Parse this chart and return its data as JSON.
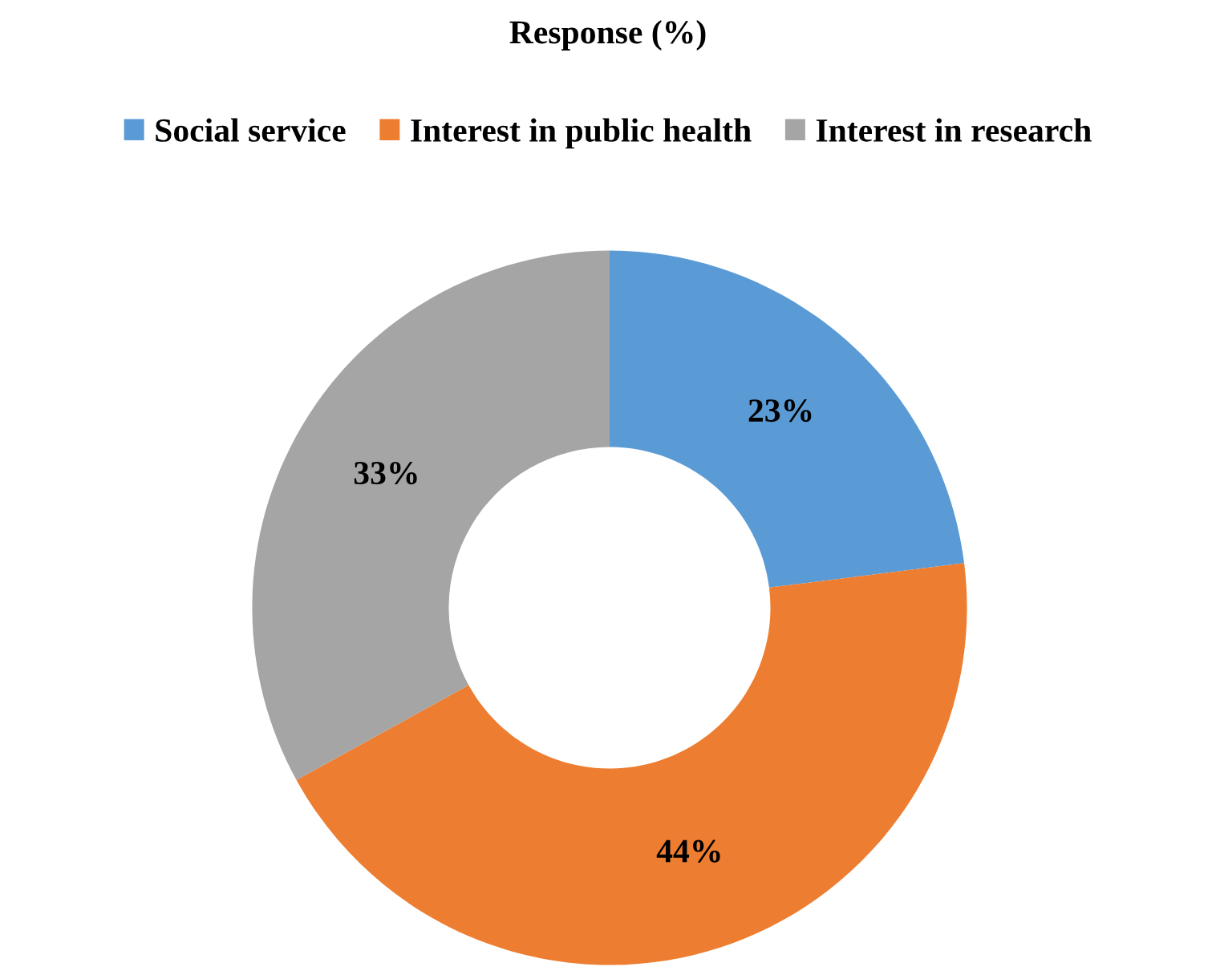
{
  "chart_data": {
    "type": "donut",
    "title": "Response (%)",
    "categories": [
      "Social service",
      "Interest in public health",
      "Interest in research"
    ],
    "values": [
      23,
      44,
      33
    ],
    "colors": [
      "#5b9bd5",
      "#ed7d31",
      "#a5a5a5"
    ],
    "value_labels": [
      "23%",
      "44%",
      "33%"
    ],
    "legend": "top"
  }
}
